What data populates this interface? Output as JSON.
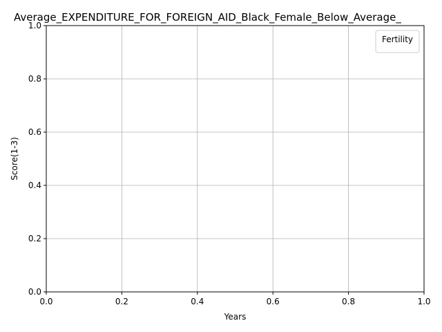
{
  "chart_data": {
    "type": "line",
    "title": "Average_EXPENDITURE_FOR_FOREIGN_AID_Black_Female_Below_Average_",
    "xlabel": "Years",
    "ylabel": "Score(1-3)",
    "xlim": [
      0.0,
      1.0
    ],
    "ylim": [
      0.0,
      1.0
    ],
    "x_ticks": [
      "0.0",
      "0.2",
      "0.4",
      "0.6",
      "0.8",
      "1.0"
    ],
    "y_ticks": [
      "0.0",
      "0.2",
      "0.4",
      "0.6",
      "0.8",
      "1.0"
    ],
    "grid": true,
    "legend": {
      "title": "Fertility",
      "placement": "top-right",
      "entries": []
    },
    "series": []
  }
}
